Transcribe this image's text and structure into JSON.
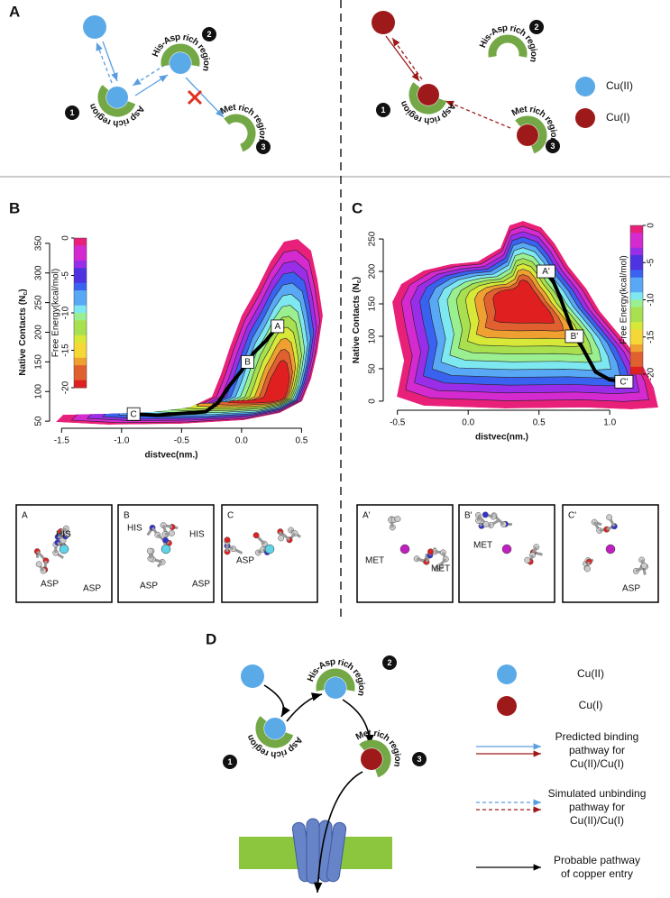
{
  "panels": {
    "a": "A",
    "b": "B",
    "c": "C",
    "d": "D"
  },
  "panel_a": {
    "left": {
      "sites": [
        {
          "number": "1",
          "label": "Asp rich region"
        },
        {
          "number": "2",
          "label": "His-Asp rich region"
        },
        {
          "number": "3",
          "label": "Met rich region"
        }
      ]
    },
    "right": {
      "sites": [
        {
          "number": "1",
          "label": "Asp rich region"
        },
        {
          "number": "2",
          "label": "His-Asp rich region"
        },
        {
          "number": "3",
          "label": "Met rich region"
        }
      ]
    },
    "legend": [
      {
        "label": "Cu(II)",
        "color": "#5aaae8"
      },
      {
        "label": "Cu(I)",
        "color": "#9e1a1a"
      }
    ]
  },
  "plot_b": {
    "x_label": "distvec(nm.)",
    "y_label": {
      "text": "Native Contacts (N",
      "sub": "c",
      "close": ")"
    },
    "xlim": [
      -1.6,
      0.73
    ],
    "ylim": [
      38,
      362
    ],
    "xticks": [
      -1.5,
      {
        "value": -1.0,
        "label": "-1.0"
      },
      -0.5,
      {
        "value": 0.0,
        "label": "0.0"
      },
      0.5
    ],
    "yticks": [
      50,
      100,
      150,
      200,
      250,
      300,
      350
    ],
    "colorbar": {
      "label": "Free Energy(kcal/mol)",
      "lim": [
        0,
        -20
      ],
      "ticks": [
        0,
        -5,
        -10,
        -15,
        -20
      ]
    },
    "points": [
      {
        "label": "A",
        "x": 0.3,
        "y": 210
      },
      {
        "label": "B",
        "x": 0.05,
        "y": 150
      },
      {
        "label": "C",
        "x": -0.9,
        "y": 62
      }
    ],
    "path": {
      "x": [
        -0.9,
        -0.7,
        -0.5,
        -0.3,
        -0.2,
        -0.1,
        0.0,
        0.05,
        0.1,
        0.2,
        0.3
      ],
      "y": [
        62,
        60,
        63,
        66,
        80,
        110,
        135,
        150,
        165,
        185,
        210
      ]
    }
  },
  "plot_c": {
    "x_label": "distvec(nm.)",
    "y_label": {
      "text": "Native Contacts (N",
      "sub": "c",
      "close": ")"
    },
    "xlim": [
      -0.6,
      1.33
    ],
    "ylim": [
      -14,
      264
    ],
    "xticks": [
      -0.5,
      {
        "value": 0.0,
        "label": "0.0"
      },
      0.5,
      {
        "value": 1.0,
        "label": "1.0"
      }
    ],
    "yticks": [
      0,
      50,
      100,
      150,
      200,
      250
    ],
    "colorbar": {
      "label": "Free Energy(kcal/mol)",
      "lim": [
        0,
        -20
      ],
      "ticks": [
        0,
        -5,
        -10,
        -15,
        -20
      ]
    },
    "points": [
      {
        "label": "A'",
        "x": 0.55,
        "y": 200
      },
      {
        "label": "B'",
        "x": 0.75,
        "y": 100
      },
      {
        "label": "C'",
        "x": 1.1,
        "y": 30
      }
    ],
    "path": {
      "x": [
        1.1,
        1.0,
        0.9,
        0.85,
        0.8,
        0.75,
        0.7,
        0.65,
        0.6,
        0.55
      ],
      "y": [
        30,
        33,
        45,
        65,
        85,
        100,
        130,
        160,
        185,
        200
      ]
    }
  },
  "structures_b": [
    {
      "label": "A",
      "residues": [
        "HIS",
        "ASP",
        "ASP"
      ]
    },
    {
      "label": "B",
      "residues": [
        "HIS",
        "HIS",
        "ASP",
        "ASP"
      ]
    },
    {
      "label": "C",
      "residues": [
        "ASP"
      ]
    }
  ],
  "structures_c": [
    {
      "label": "A'",
      "residues": [
        "MET",
        "MET"
      ]
    },
    {
      "label": "B'",
      "residues": [
        "MET"
      ]
    },
    {
      "label": "C'",
      "residues": [
        "ASP"
      ]
    }
  ],
  "panel_d": {
    "sites": [
      {
        "number": "1",
        "label": "Asp rich region"
      },
      {
        "number": "2",
        "label": "His-Asp rich region"
      },
      {
        "number": "3",
        "label": "Met rich region"
      }
    ],
    "legend": {
      "cu2": "Cu(II)",
      "cu1": "Cu(I)",
      "binding": [
        "Predicted binding",
        "pathway for",
        "Cu(II)/Cu(I)"
      ],
      "unbinding": [
        "Simulated unbinding",
        "pathway for",
        "Cu(II)/Cu(I)"
      ],
      "entry": [
        "Probable pathway",
        "of copper entry"
      ]
    }
  }
}
